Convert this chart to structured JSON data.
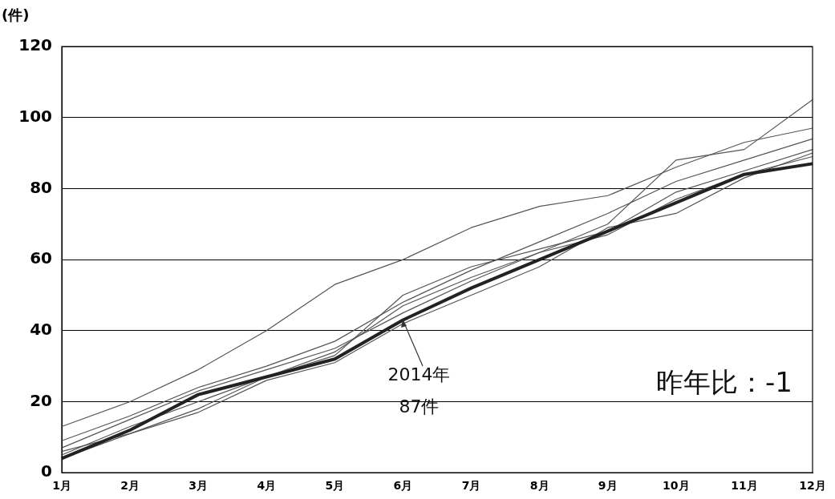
{
  "chart_data": {
    "type": "line",
    "ylabel": "(件)",
    "categories": [
      "1月",
      "2月",
      "3月",
      "4月",
      "5月",
      "6月",
      "7月",
      "8月",
      "9月",
      "10月",
      "11月",
      "12月"
    ],
    "series": [
      {
        "color": "#555555",
        "values": [
          13,
          20,
          29,
          40,
          53,
          60,
          69,
          75,
          78,
          86,
          93,
          97
        ]
      },
      {
        "color": "#555555",
        "values": [
          5,
          13,
          20,
          27,
          34,
          47,
          55,
          62,
          70,
          88,
          91,
          105
        ]
      },
      {
        "color": "#555555",
        "values": [
          9,
          16,
          24,
          30,
          37,
          48,
          57,
          65,
          73,
          82,
          88,
          94
        ]
      },
      {
        "color": "#555555",
        "values": [
          6,
          11,
          18,
          27,
          33,
          50,
          58,
          63,
          68,
          79,
          85,
          91
        ]
      },
      {
        "color": "#555555",
        "values": [
          4,
          11,
          17,
          26,
          31,
          42,
          50,
          58,
          69,
          73,
          83,
          90
        ]
      },
      {
        "color": "#555555",
        "values": [
          7,
          15,
          23,
          29,
          35,
          45,
          54,
          62,
          67,
          77,
          84,
          89
        ]
      },
      {
        "color": "#222222",
        "values": [
          4,
          12,
          22,
          27,
          32,
          43,
          52,
          60,
          68,
          76,
          84,
          87
        ]
      }
    ],
    "ylim": [
      0,
      120
    ],
    "yticks": [
      0,
      20,
      40,
      60,
      80,
      100,
      120
    ],
    "grid": "y",
    "legend": false,
    "marker": "none",
    "line_style": "solid",
    "annotations": [
      {
        "text": "2014年\n87件",
        "x": "6月",
        "y": 43
      },
      "昨年比：-1"
    ]
  }
}
